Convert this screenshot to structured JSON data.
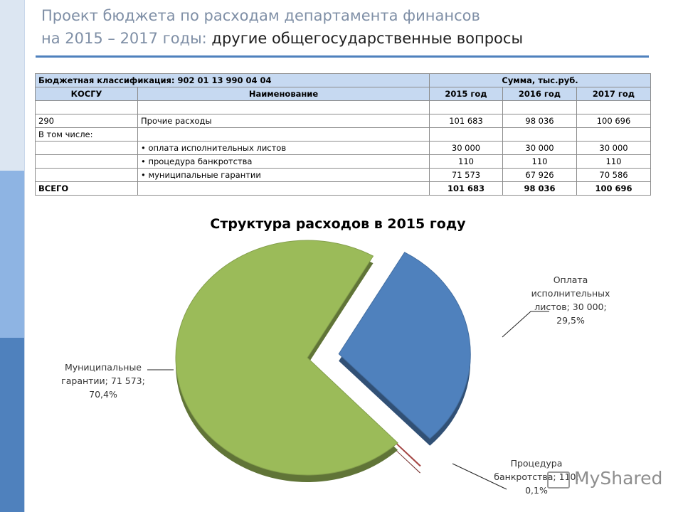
{
  "slide": {
    "title_line1": "Проект бюджета по расходам департамента финансов",
    "title_line2_prefix": "на 2015 – 2017 годы:",
    "title_line2_rest": " другие общегосударственные вопросы"
  },
  "table": {
    "classification_label": "Бюджетная классификация:   902 01 13 990 04 04",
    "sum_label": "Сумма, тыс.руб.",
    "col_kosgu": "КОСГУ",
    "col_name": "Наименование",
    "col_2015": "2015 год",
    "col_2016": "2016 год",
    "col_2017": "2017 год",
    "rows": [
      {
        "kosgu": "290",
        "name": "Прочие расходы",
        "y2015": "101 683",
        "y2016": "98 036",
        "y2017": "100 696"
      },
      {
        "kosgu": "В том числе:",
        "name": "",
        "y2015": "",
        "y2016": "",
        "y2017": ""
      },
      {
        "kosgu": "",
        "name": "оплата исполнительных листов",
        "y2015": "30 000",
        "y2016": "30 000",
        "y2017": "30 000"
      },
      {
        "kosgu": "",
        "name": "процедура банкротства",
        "y2015": "110",
        "y2016": "110",
        "y2017": "110"
      },
      {
        "kosgu": "",
        "name": "муниципальные гарантии",
        "y2015": "71 573",
        "y2016": "67 926",
        "y2017": "70 586"
      }
    ],
    "total": {
      "label": "ВСЕГО",
      "y2015": "101 683",
      "y2016": "98 036",
      "y2017": "100 696"
    }
  },
  "chart_data": {
    "type": "pie",
    "title": "Структура расходов в 2015 году",
    "slices": [
      {
        "name": "Оплата исполнительных листов",
        "value": 30000,
        "percent": 29.5,
        "color": "#4f81bd",
        "label_lines": [
          "Оплата",
          "исполнительных",
          "листов; 30 000;",
          "29,5%"
        ]
      },
      {
        "name": "Процедура банкротства",
        "value": 110,
        "percent": 0.1,
        "color": "#c0504d",
        "label_lines": [
          "Процедура",
          "банкротства; 110;",
          "0,1%"
        ]
      },
      {
        "name": "Муниципальные гарантии",
        "value": 71573,
        "percent": 70.4,
        "color": "#9bbb59",
        "label_lines": [
          "Муниципальные",
          "гарантии; 71 573;",
          "70,4%"
        ]
      }
    ]
  },
  "watermark": {
    "text": "MyShared"
  }
}
